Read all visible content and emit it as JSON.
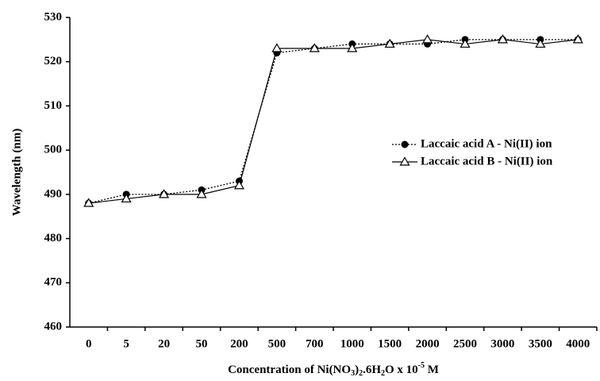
{
  "chart_data": {
    "type": "line",
    "x_label": "Concentration of Ni(NO3)2.6H2O x 10-5 M",
    "y_label": "Wavelength (nm)",
    "categories": [
      "0",
      "5",
      "20",
      "50",
      "200",
      "500",
      "700",
      "1000",
      "1500",
      "2000",
      "2500",
      "3000",
      "3500",
      "4000"
    ],
    "series": [
      {
        "name": "Laccaic acid A - Ni(II) ion",
        "color": "#000000",
        "marker": "filled-circle",
        "line": "dotted",
        "values": [
          488,
          490,
          490,
          491,
          493,
          522,
          523,
          524,
          524,
          524,
          525,
          525,
          525,
          525
        ]
      },
      {
        "name": "Laccaic acid B - Ni(II) ion",
        "color": "#000000",
        "marker": "open-triangle",
        "line": "solid",
        "values": [
          488,
          489,
          490,
          490,
          492,
          523,
          523,
          523,
          524,
          525,
          524,
          525,
          524,
          525
        ]
      }
    ],
    "ylim": [
      460,
      530
    ],
    "yticks": [
      460,
      470,
      480,
      490,
      500,
      510,
      520,
      530
    ],
    "legend": "right",
    "grid": false
  }
}
